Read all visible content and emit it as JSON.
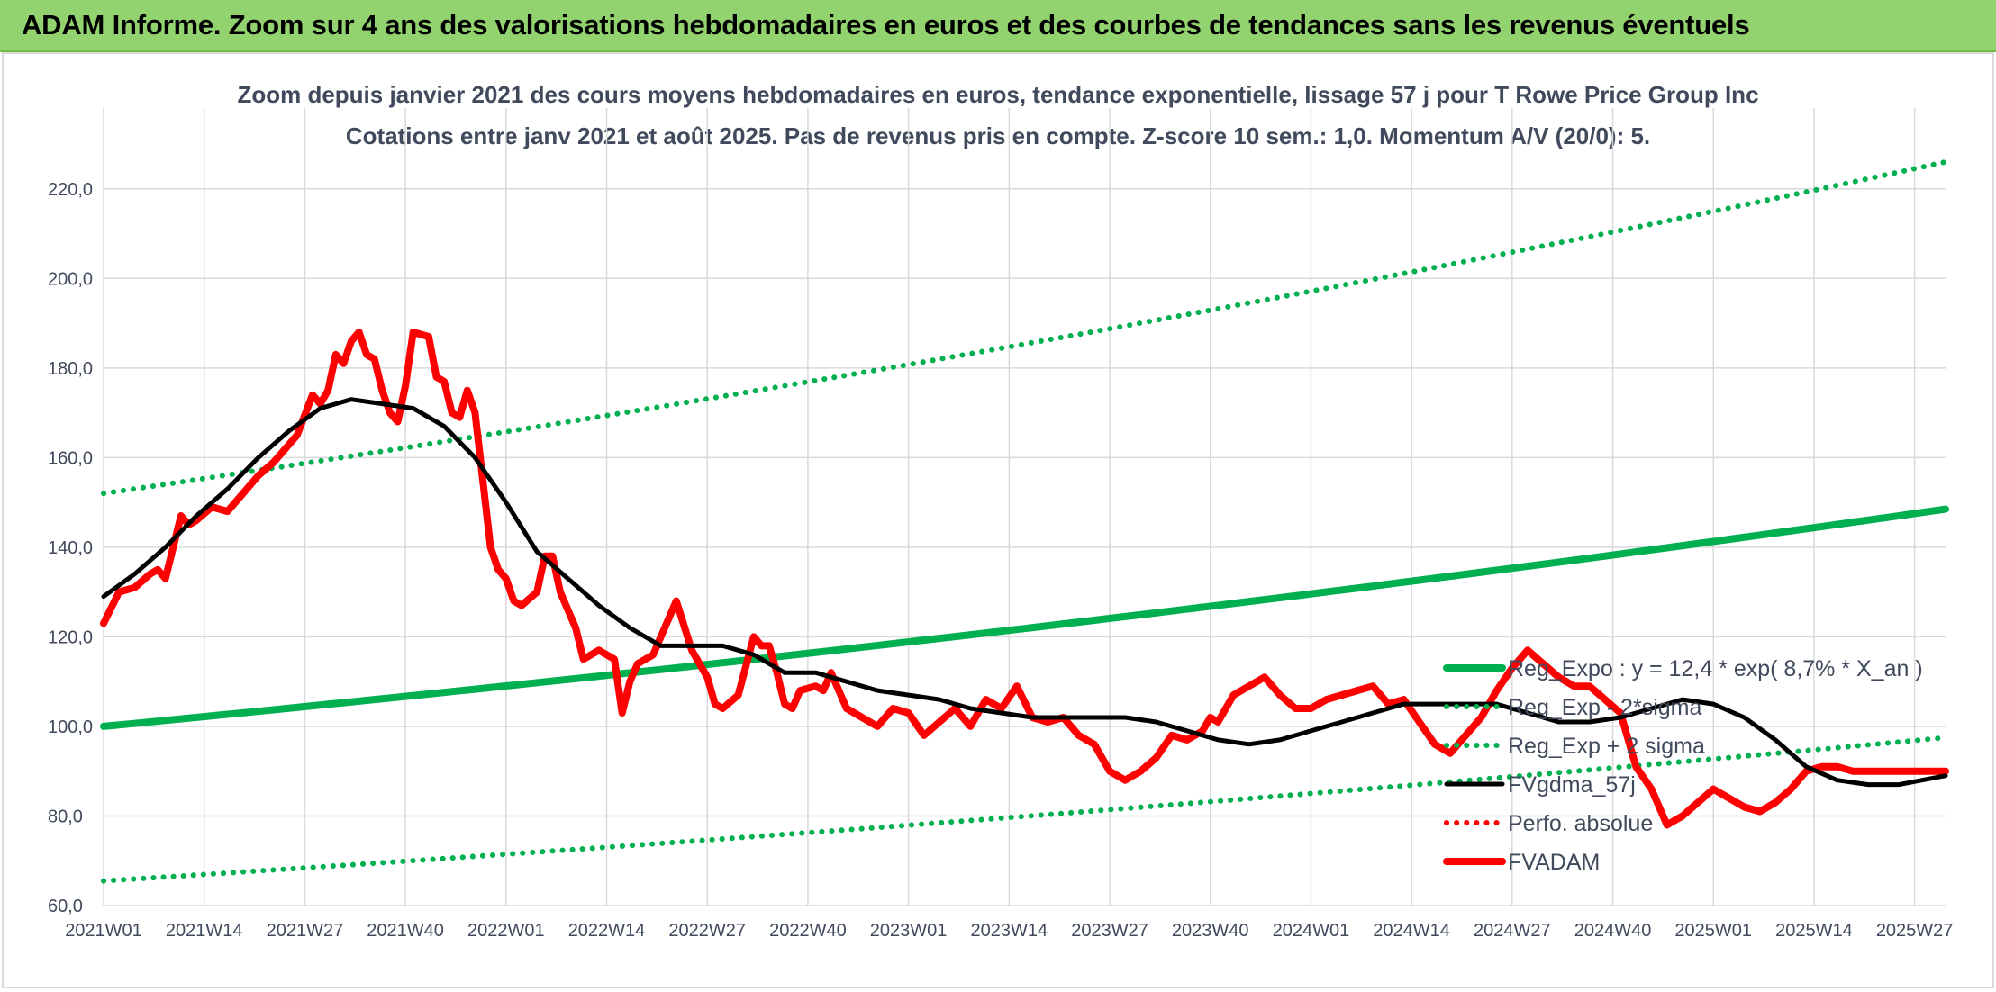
{
  "header": {
    "title": "ADAM Informe. Zoom sur 4 ans des valorisations hebdomadaires en euros et des courbes de tendances sans les revenus éventuels"
  },
  "colors": {
    "trend_green": "#00b050",
    "fvadam_red": "#ff0000",
    "fvgdma_black": "#000000",
    "grid": "#d9d9d9",
    "text": "#404a5c",
    "header_bg": "#92d26f"
  },
  "chart_data": {
    "type": "line",
    "title": "Zoom depuis janvier 2021 des cours moyens hebdomadaires en euros, tendance exponentielle, lissage 57 j pour T Rowe Price Group Inc",
    "subtitle": "Cotations entre janv 2021 et août 2025. Pas de revenus pris en compte. Z-score 10 sem.: 1,0. Momentum A/V (20/0): 5.",
    "xlabel": "",
    "ylabel": "",
    "ylim": [
      60,
      220
    ],
    "yticks": [
      "60,0",
      "80,0",
      "100,0",
      "120,0",
      "140,0",
      "160,0",
      "180,0",
      "200,0",
      "220,0"
    ],
    "x_tick_labels": [
      "2021W01",
      "2021W14",
      "2021W27",
      "2021W40",
      "2022W01",
      "2022W14",
      "2022W27",
      "2022W40",
      "2023W01",
      "2023W14",
      "2023W27",
      "2023W40",
      "2024W01",
      "2024W14",
      "2024W27",
      "2024W40",
      "2025W01",
      "2025W14",
      "2025W27"
    ],
    "x_tick_week_index": [
      0,
      13,
      26,
      39,
      52,
      65,
      78,
      91,
      104,
      117,
      130,
      143,
      156,
      169,
      182,
      195,
      208,
      221,
      234
    ],
    "x_range_weeks": [
      0,
      238
    ],
    "grid": true,
    "legend_position": "right, inside plot area",
    "series": [
      {
        "name": "Reg_Expo : y = 12,4 * exp( 8,7% *  X_an )",
        "style": "solid-thick",
        "color": "#00b050",
        "x": [
          0,
          238
        ],
        "values": [
          100.0,
          148.5
        ]
      },
      {
        "name": "Reg_Exp - 2*sigma",
        "style": "dotted",
        "color": "#00b050",
        "x": [
          0,
          238
        ],
        "values": [
          65.5,
          97.5
        ]
      },
      {
        "name": "Reg_Exp + 2 sigma",
        "style": "dotted",
        "color": "#00b050",
        "x": [
          0,
          238
        ],
        "values": [
          152.0,
          226.0
        ]
      },
      {
        "name": "FVgdma_57j",
        "style": "solid",
        "color": "#000000",
        "x": [
          0,
          4,
          8,
          12,
          16,
          20,
          24,
          28,
          32,
          36,
          40,
          44,
          48,
          52,
          56,
          60,
          64,
          68,
          72,
          76,
          80,
          84,
          88,
          92,
          96,
          100,
          104,
          108,
          112,
          116,
          120,
          124,
          128,
          132,
          136,
          140,
          144,
          148,
          152,
          156,
          160,
          164,
          168,
          172,
          176,
          180,
          184,
          188,
          192,
          196,
          200,
          204,
          208,
          212,
          216,
          220,
          224,
          228,
          232,
          238
        ],
        "values": [
          129,
          134,
          140,
          147,
          153,
          160,
          166,
          171,
          173,
          172,
          171,
          167,
          160,
          150,
          139,
          133,
          127,
          122,
          118,
          118,
          118,
          116,
          112,
          112,
          110,
          108,
          107,
          106,
          104,
          103,
          102,
          102,
          102,
          102,
          101,
          99,
          97,
          96,
          97,
          99,
          101,
          103,
          105,
          105,
          105,
          105,
          103,
          101,
          101,
          102,
          104,
          106,
          105,
          102,
          97,
          91,
          88,
          87,
          87,
          89
        ]
      },
      {
        "name": "Perfo. absolue",
        "style": "dotted",
        "color": "#ff0000",
        "x": [],
        "values": []
      },
      {
        "name": "FVADAM",
        "style": "solid-thick",
        "color": "#ff0000",
        "x": [
          0,
          2,
          4,
          6,
          7,
          8,
          10,
          11,
          12,
          14,
          16,
          18,
          20,
          22,
          24,
          25,
          27,
          28,
          29,
          30,
          31,
          32,
          33,
          34,
          35,
          36,
          37,
          38,
          39,
          40,
          42,
          43,
          44,
          45,
          46,
          47,
          48,
          50,
          51,
          52,
          53,
          54,
          56,
          57,
          58,
          59,
          60,
          61,
          62,
          63,
          64,
          66,
          67,
          68,
          69,
          71,
          72,
          74,
          76,
          78,
          79,
          80,
          82,
          84,
          85,
          86,
          87,
          88,
          89,
          90,
          92,
          93,
          94,
          96,
          98,
          100,
          102,
          104,
          106,
          108,
          110,
          112,
          114,
          116,
          118,
          120,
          122,
          124,
          126,
          128,
          130,
          132,
          134,
          136,
          138,
          140,
          142,
          143,
          144,
          146,
          148,
          150,
          152,
          154,
          156,
          158,
          160,
          162,
          164,
          166,
          168,
          170,
          172,
          174,
          176,
          178,
          180,
          182,
          184,
          186,
          188,
          190,
          192,
          194,
          196,
          198,
          200,
          202,
          204,
          206,
          208,
          210,
          212,
          214,
          216,
          218,
          220,
          222,
          224,
          226,
          228,
          230,
          232,
          234,
          236,
          238
        ],
        "values": [
          123,
          130,
          131,
          134,
          135,
          133,
          147,
          145,
          146,
          149,
          148,
          152,
          156,
          159,
          163,
          165,
          174,
          172,
          175,
          183,
          181,
          186,
          188,
          183,
          182,
          175,
          170,
          168,
          176,
          188,
          187,
          178,
          177,
          170,
          169,
          175,
          170,
          140,
          135,
          133,
          128,
          127,
          130,
          138,
          138,
          130,
          126,
          122,
          115,
          116,
          117,
          115,
          103,
          110,
          114,
          116,
          120,
          128,
          117,
          111,
          105,
          104,
          107,
          120,
          118,
          118,
          112,
          105,
          104,
          108,
          109,
          108,
          112,
          104,
          102,
          100,
          104,
          103,
          98,
          101,
          104,
          100,
          106,
          104,
          109,
          102,
          101,
          102,
          98,
          96,
          90,
          88,
          90,
          93,
          98,
          97,
          99,
          102,
          101,
          107,
          109,
          111,
          107,
          104,
          104,
          106,
          107,
          108,
          109,
          105,
          106,
          101,
          96,
          94,
          98,
          102,
          108,
          113,
          117,
          114,
          111,
          109,
          109,
          106,
          103,
          91,
          86,
          78,
          80,
          83,
          86,
          84,
          82,
          81,
          83,
          86,
          90,
          91,
          91,
          90,
          90,
          90,
          90,
          90,
          90,
          90
        ],
        "values_note_hidden": null
      }
    ]
  }
}
